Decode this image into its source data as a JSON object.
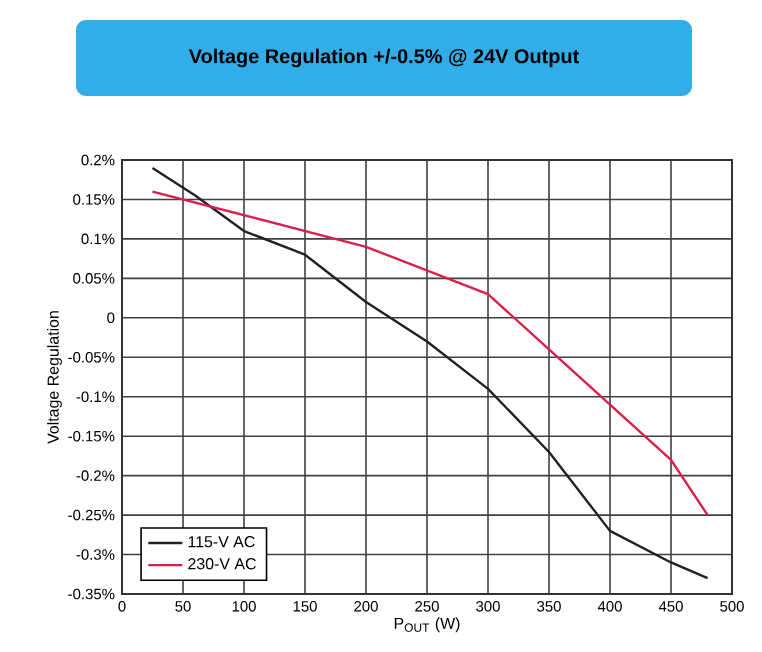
{
  "chart_data": {
    "type": "line",
    "title": "Voltage Regulation +/-0.5% @ 24V Output",
    "xlabel": "P$_{OUT}$ (W)",
    "ylabel": "Voltage Regulation",
    "xlim": [
      0,
      500
    ],
    "xticks": [
      0,
      50,
      100,
      150,
      200,
      250,
      300,
      350,
      400,
      450,
      500
    ],
    "ylim": [
      -0.35,
      0.2
    ],
    "yticks": [
      {
        "value": -0.35,
        "label": "-0.35%"
      },
      {
        "value": -0.3,
        "label": "-0.3%"
      },
      {
        "value": -0.25,
        "label": "-0.25%"
      },
      {
        "value": -0.2,
        "label": "-0.2%"
      },
      {
        "value": -0.15,
        "label": "-0.15%"
      },
      {
        "value": -0.1,
        "label": "-0.1%"
      },
      {
        "value": -0.05,
        "label": "-0.05%"
      },
      0,
      {
        "value": 0.05,
        "label": "0.05%"
      },
      {
        "value": 0.1,
        "label": "0.1%"
      },
      {
        "value": 0.15,
        "label": "0.15%"
      },
      {
        "value": 0.2,
        "label": "0.2%"
      }
    ],
    "grid": true,
    "legend": "bottom left",
    "marker": "none",
    "line_style": "solid",
    "series": [
      {
        "name": "115-V AC",
        "color": "#222222",
        "x": [
          25,
          60,
          100,
          150,
          200,
          250,
          300,
          350,
          400,
          450,
          480
        ],
        "values": [
          0.19,
          0.155,
          0.11,
          0.08,
          0.02,
          -0.03,
          -0.09,
          -0.17,
          -0.27,
          -0.31,
          -0.33
        ]
      },
      {
        "name": "230-V AC",
        "color": "#d8204a",
        "x": [
          25,
          100,
          150,
          200,
          250,
          300,
          350,
          400,
          450,
          480
        ],
        "values": [
          0.16,
          0.13,
          0.11,
          0.09,
          0.06,
          0.03,
          -0.04,
          -0.11,
          -0.18,
          -0.25
        ]
      }
    ]
  }
}
